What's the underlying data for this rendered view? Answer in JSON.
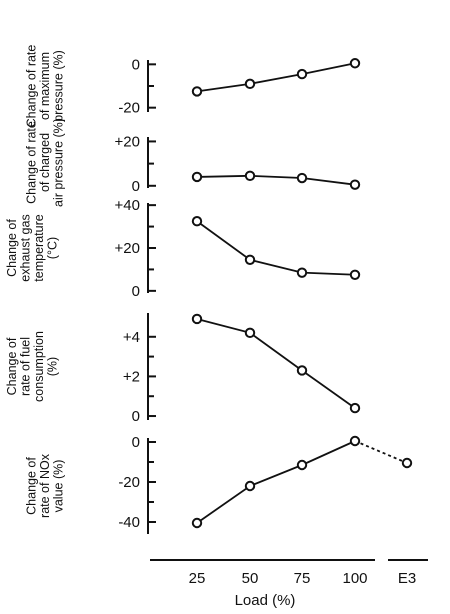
{
  "chart_data": [
    {
      "type": "line",
      "id": "max-pressure",
      "ylabel": [
        "Change of rate",
        "of maximum",
        "pressure (%)"
      ],
      "yticks": [
        "0",
        "-20"
      ],
      "yticks_values": [
        0,
        -20
      ],
      "ylim": [
        -22,
        2
      ],
      "x": [
        25,
        50,
        75,
        100
      ],
      "values": [
        -12.5,
        -9,
        -4.5,
        0.5
      ]
    },
    {
      "type": "line",
      "id": "charged-air-pressure",
      "ylabel": [
        "Change of rate",
        "of charged",
        "air pressure (%)"
      ],
      "yticks": [
        "+20",
        "0"
      ],
      "yticks_values": [
        20,
        0
      ],
      "ylim": [
        -1,
        22
      ],
      "x": [
        25,
        50,
        75,
        100
      ],
      "values": [
        4,
        4.5,
        3.5,
        0.5
      ]
    },
    {
      "type": "line",
      "id": "exhaust-gas-temperature",
      "ylabel": [
        "Change of",
        "exhaust gas",
        "temperature",
        "(°C)"
      ],
      "yticks": [
        "+40",
        "+20",
        "0"
      ],
      "yticks_values": [
        40,
        20,
        0
      ],
      "ylim": [
        -1,
        41
      ],
      "x": [
        25,
        50,
        75,
        100
      ],
      "values": [
        32.5,
        14.5,
        8.5,
        7.5
      ]
    },
    {
      "type": "line",
      "id": "fuel-consumption",
      "ylabel": [
        "Change of",
        "rate of fuel",
        "consumption",
        "(%)"
      ],
      "yticks": [
        "+4",
        "+2",
        "0"
      ],
      "yticks_values": [
        4,
        2,
        0
      ],
      "ylim": [
        -0.2,
        5.2
      ],
      "x": [
        25,
        50,
        75,
        100
      ],
      "values": [
        4.9,
        4.2,
        2.3,
        0.4
      ]
    },
    {
      "type": "line",
      "id": "nox-value",
      "ylabel": [
        "Change of",
        "rate of NOx",
        "value (%)"
      ],
      "yticks": [
        "0",
        "-20",
        "-40"
      ],
      "yticks_values": [
        0,
        -20,
        -40
      ],
      "ylim": [
        -46,
        2
      ],
      "x": [
        25,
        50,
        75,
        100
      ],
      "values": [
        -40.5,
        -22,
        -11.5,
        0.5
      ],
      "e3_value": -10.5
    }
  ],
  "x_axis": {
    "label": "Load (%)",
    "ticks": [
      "25",
      "50",
      "75",
      "100",
      "E3"
    ]
  }
}
